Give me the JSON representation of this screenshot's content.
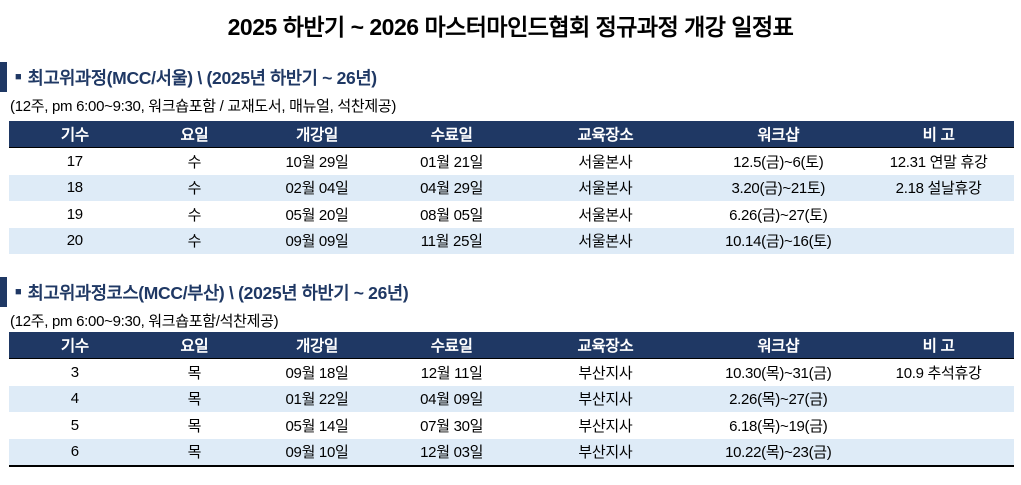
{
  "title": "2025 하반기 ~ 2026 마스터마인드협회 정규과정 개강 일정표",
  "colors": {
    "header_navy": "#1F3864",
    "stripe_blue": "#DEEBF7",
    "heading_text": "#1F3864"
  },
  "bullet": "■",
  "sections": [
    {
      "heading": "최고위과정(MCC/서울)  \\ (2025년 하반기 ~ 26년)",
      "subtitle": "(12주, pm 6:00~9:30, 워크숍포함 / 교재도서, 매뉴얼, 석찬제공)",
      "columns": [
        "기수",
        "요일",
        "개강일",
        "수료일",
        "교육장소",
        "워크샵",
        "비 고"
      ],
      "rows": [
        [
          "17",
          "수",
          "10월 29일",
          "01월 21일",
          "서울본사",
          "12.5(금)~6(토)",
          "12.31 연말 휴강"
        ],
        [
          "18",
          "수",
          "02월 04일",
          "04월 29일",
          "서울본사",
          "3.20(금)~21토)",
          "2.18 설날휴강"
        ],
        [
          "19",
          "수",
          "05월 20일",
          "08월 05일",
          "서울본사",
          "6.26(금)~27(토)",
          ""
        ],
        [
          "20",
          "수",
          "09월 09일",
          "11월 25일",
          "서울본사",
          "10.14(금)~16(토)",
          ""
        ]
      ]
    },
    {
      "heading": "최고위과정코스(MCC/부산)  \\ (2025년 하반기 ~ 26년)",
      "subtitle": "(12주, pm 6:00~9:30, 워크숍포함/석찬제공)",
      "columns": [
        "기수",
        "요일",
        "개강일",
        "수료일",
        "교육장소",
        "워크샵",
        "비 고"
      ],
      "rows": [
        [
          "3",
          "목",
          "09월 18일",
          "12월 11일",
          "부산지사",
          "10.30(목)~31(금)",
          "10.9 추석휴강"
        ],
        [
          "4",
          "목",
          "01월 22일",
          "04월 09일",
          "부산지사",
          "2.26(목)~27(금)",
          ""
        ],
        [
          "5",
          "목",
          "05월 14일",
          "07월 30일",
          "부산지사",
          "6.18(목)~19(금)",
          ""
        ],
        [
          "6",
          "목",
          "09월 10일",
          "12월 03일",
          "부산지사",
          "10.22(목)~23(금)",
          ""
        ]
      ]
    }
  ]
}
